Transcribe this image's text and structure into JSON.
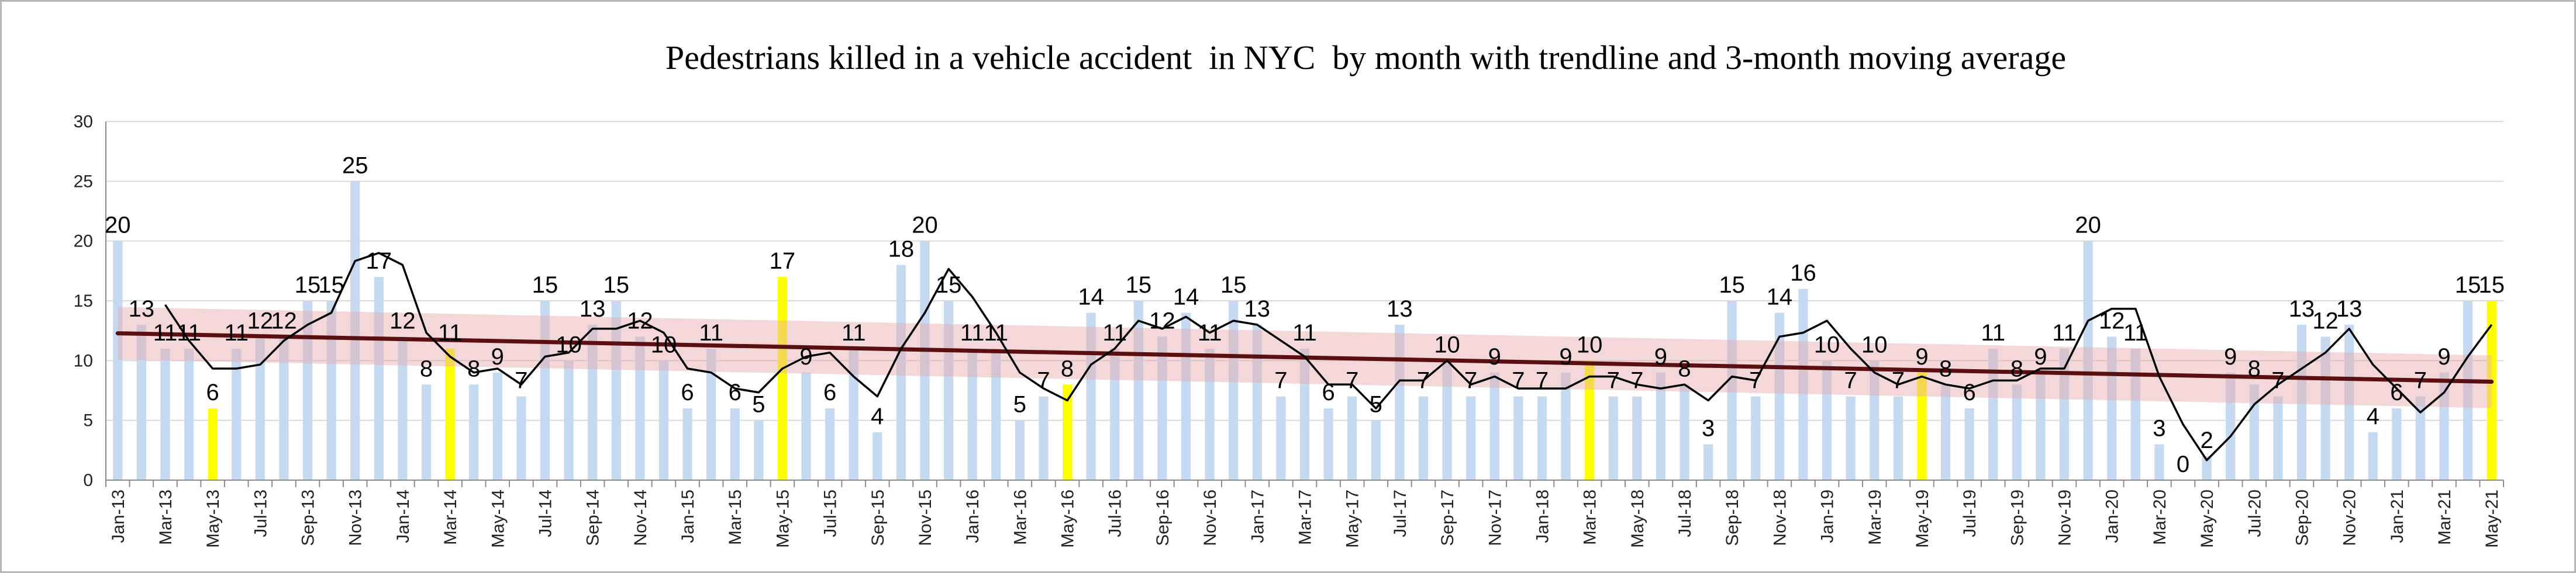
{
  "chart_data": {
    "type": "bar",
    "title": "Pedestrians killed in a vehicle accident  in NYC  by month with trendline and 3-month moving average",
    "xlabel": "",
    "ylabel": "",
    "ylim": [
      0,
      30
    ],
    "yticks": [
      0,
      5,
      10,
      15,
      20,
      25,
      30
    ],
    "grid": true,
    "legend": "none",
    "categories": [
      "Jan-13",
      "Feb-13",
      "Mar-13",
      "Apr-13",
      "May-13",
      "Jun-13",
      "Jul-13",
      "Aug-13",
      "Sep-13",
      "Oct-13",
      "Nov-13",
      "Dec-13",
      "Jan-14",
      "Feb-14",
      "Mar-14",
      "Apr-14",
      "May-14",
      "Jun-14",
      "Jul-14",
      "Aug-14",
      "Sep-14",
      "Oct-14",
      "Nov-14",
      "Dec-14",
      "Jan-15",
      "Feb-15",
      "Mar-15",
      "Apr-15",
      "May-15",
      "Jun-15",
      "Jul-15",
      "Aug-15",
      "Sep-15",
      "Oct-15",
      "Nov-15",
      "Dec-15",
      "Jan-16",
      "Feb-16",
      "Mar-16",
      "Apr-16",
      "May-16",
      "Jun-16",
      "Jul-16",
      "Aug-16",
      "Sep-16",
      "Oct-16",
      "Nov-16",
      "Dec-16",
      "Jan-17",
      "Feb-17",
      "Mar-17",
      "Apr-17",
      "May-17",
      "Jun-17",
      "Jul-17",
      "Aug-17",
      "Sep-17",
      "Oct-17",
      "Nov-17",
      "Dec-17",
      "Jan-18",
      "Feb-18",
      "Mar-18",
      "Apr-18",
      "May-18",
      "Jun-18",
      "Jul-18",
      "Aug-18",
      "Sep-18",
      "Oct-18",
      "Nov-18",
      "Dec-18",
      "Jan-19",
      "Feb-19",
      "Mar-19",
      "Apr-19",
      "May-19",
      "Jun-19",
      "Jul-19",
      "Aug-19",
      "Sep-19",
      "Oct-19",
      "Nov-19",
      "Dec-19",
      "Jan-20",
      "Feb-20",
      "Mar-20",
      "Apr-20",
      "May-20",
      "Jun-20",
      "Jul-20",
      "Aug-20",
      "Sep-20",
      "Oct-20",
      "Nov-20",
      "Dec-20",
      "Jan-21",
      "Feb-21",
      "Mar-21",
      "Apr-21",
      "May-21"
    ],
    "tick_labels": [
      "Jan-13",
      "Mar-13",
      "May-13",
      "Jul-13",
      "Sep-13",
      "Nov-13",
      "Jan-14",
      "Mar-14",
      "May-14",
      "Jul-14",
      "Sep-14",
      "Nov-14",
      "Jan-15",
      "Mar-15",
      "May-15",
      "Jul-15",
      "Sep-15",
      "Nov-15",
      "Jan-16",
      "Mar-16",
      "May-16",
      "Jul-16",
      "Sep-16",
      "Nov-16",
      "Jan-17",
      "Mar-17",
      "May-17",
      "Jul-17",
      "Sep-17",
      "Nov-17",
      "Jan-18",
      "Mar-18",
      "May-18",
      "Jul-18",
      "Sep-18",
      "Nov-18",
      "Jan-19",
      "Mar-19",
      "May-19",
      "Jul-19",
      "Sep-19",
      "Nov-19",
      "Jan-20",
      "Mar-20",
      "May-20",
      "Jul-20",
      "Sep-20",
      "Nov-20",
      "Jan-21",
      "Mar-21",
      "May-21"
    ],
    "series": [
      {
        "type": "bar",
        "values": [
          20,
          13,
          11,
          11,
          6,
          11,
          12,
          12,
          15,
          15,
          25,
          17,
          12,
          8,
          11,
          8,
          9,
          7,
          15,
          10,
          13,
          15,
          12,
          10,
          6,
          11,
          6,
          5,
          17,
          9,
          6,
          11,
          4,
          18,
          20,
          15,
          11,
          11,
          5,
          7,
          8,
          14,
          11,
          15,
          12,
          14,
          11,
          15,
          13,
          7,
          11,
          6,
          7,
          5,
          13,
          7,
          10,
          7,
          9,
          7,
          7,
          9,
          10,
          7,
          7,
          9,
          8,
          3,
          15,
          7,
          14,
          16,
          10,
          7,
          10,
          7,
          9,
          8,
          6,
          11,
          8,
          9,
          11,
          20,
          12,
          11,
          3,
          0,
          2,
          9,
          8,
          7,
          13,
          12,
          13,
          4,
          6,
          7,
          9,
          15,
          15
        ],
        "color": "#c5d9f1",
        "highlight_color": "#ffff00",
        "highlighted": [
          "May-13",
          "Mar-14",
          "May-15",
          "May-16",
          "Mar-18",
          "May-19",
          "May-21"
        ]
      },
      {
        "type": "moving-average",
        "window": 3,
        "color": "#000000"
      },
      {
        "type": "linear-trendline",
        "color": "#5a1010",
        "band_color": "#e6a8aa"
      }
    ]
  }
}
